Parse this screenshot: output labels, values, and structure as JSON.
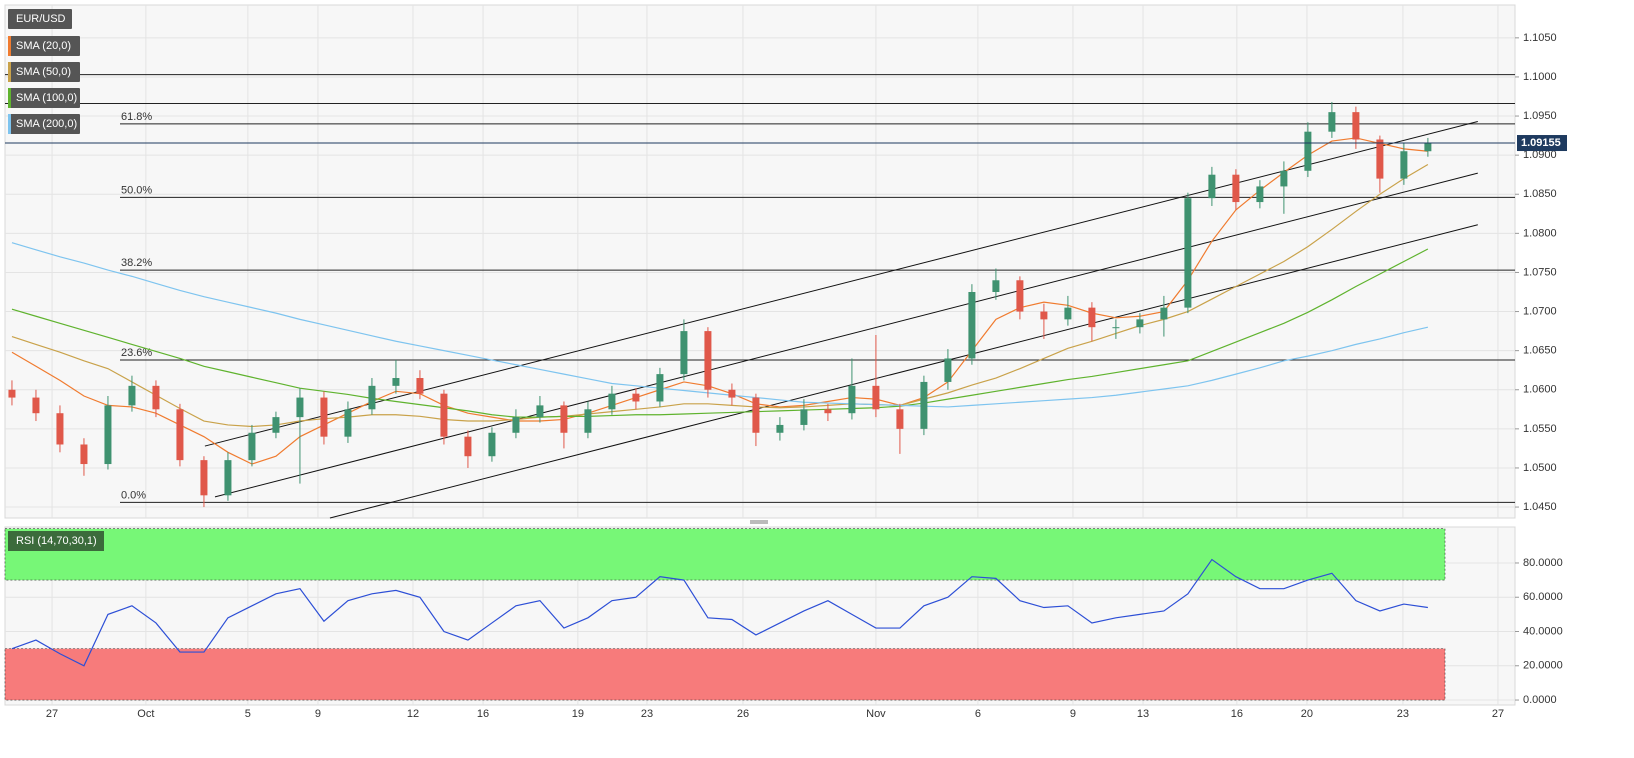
{
  "chart_data": [
    {
      "type": "candlestick",
      "name": "EUR/USD",
      "up_color": "#3f9270",
      "down_color": "#e0584a",
      "x": [
        0,
        1,
        2,
        3,
        4,
        5,
        6,
        7,
        8,
        9,
        10,
        11,
        12,
        13,
        14,
        15,
        16,
        17,
        18,
        19,
        20,
        21,
        22,
        23,
        24,
        25,
        26,
        27,
        28,
        29,
        30,
        31,
        32,
        33,
        34,
        35,
        36,
        37,
        38,
        39,
        40,
        41,
        42,
        43,
        44,
        45,
        46,
        47,
        48,
        49,
        50,
        51,
        52,
        53,
        54,
        55,
        56,
        57,
        58,
        59
      ],
      "open": [
        1.06,
        1.059,
        1.057,
        1.053,
        1.0505,
        1.058,
        1.0605,
        1.0575,
        1.051,
        1.0465,
        1.051,
        1.0545,
        1.0565,
        1.059,
        1.054,
        1.0575,
        1.0605,
        1.0615,
        1.0595,
        1.054,
        1.0515,
        1.0545,
        1.0565,
        1.058,
        1.0545,
        1.0575,
        1.0595,
        1.0585,
        1.062,
        1.0675,
        1.06,
        1.059,
        1.0545,
        1.0555,
        1.0575,
        1.057,
        1.0605,
        1.0575,
        1.055,
        1.061,
        1.064,
        1.0725,
        1.074,
        1.07,
        1.069,
        1.0705,
        1.068,
        1.068,
        1.069,
        1.0705,
        1.0845,
        1.0875,
        1.084,
        1.086,
        1.088,
        1.093,
        1.0955,
        1.092,
        1.087,
        1.0905
      ],
      "high": [
        1.0612,
        1.06,
        1.058,
        1.0538,
        1.0592,
        1.0618,
        1.0612,
        1.0582,
        1.0515,
        1.052,
        1.0555,
        1.0572,
        1.0602,
        1.0598,
        1.0585,
        1.0615,
        1.0638,
        1.0625,
        1.06,
        1.0548,
        1.0552,
        1.0575,
        1.0592,
        1.0585,
        1.0585,
        1.0605,
        1.0602,
        1.0628,
        1.069,
        1.068,
        1.0608,
        1.0595,
        1.0565,
        1.0588,
        1.0582,
        1.064,
        1.067,
        1.0582,
        1.0618,
        1.0652,
        1.0735,
        1.0755,
        1.0745,
        1.071,
        1.072,
        1.0712,
        1.069,
        1.0698,
        1.072,
        1.0852,
        1.0885,
        1.0882,
        1.0868,
        1.0892,
        1.0942,
        1.0968,
        1.0962,
        1.0925,
        1.0915,
        1.0922
      ],
      "low": [
        1.058,
        1.056,
        1.052,
        1.049,
        1.0498,
        1.0572,
        1.0565,
        1.0502,
        1.045,
        1.0458,
        1.0502,
        1.0538,
        1.048,
        1.053,
        1.0532,
        1.0568,
        1.0595,
        1.0588,
        1.053,
        1.05,
        1.0508,
        1.0538,
        1.0558,
        1.0525,
        1.0538,
        1.0568,
        1.0575,
        1.0578,
        1.0612,
        1.059,
        1.058,
        1.0528,
        1.0535,
        1.0548,
        1.056,
        1.0562,
        1.0565,
        1.0518,
        1.0542,
        1.06,
        1.0632,
        1.0715,
        1.069,
        1.0665,
        1.0682,
        1.0662,
        1.0665,
        1.0672,
        1.0668,
        1.0698,
        1.0835,
        1.083,
        1.0832,
        1.0825,
        1.0872,
        1.0922,
        1.0908,
        1.0852,
        1.0862,
        1.0898
      ],
      "close": [
        1.059,
        1.057,
        1.053,
        1.0505,
        1.058,
        1.0605,
        1.0575,
        1.051,
        1.0465,
        1.051,
        1.0545,
        1.0565,
        1.059,
        1.054,
        1.0575,
        1.0605,
        1.0615,
        1.0595,
        1.054,
        1.0515,
        1.0545,
        1.0565,
        1.058,
        1.0545,
        1.0575,
        1.0595,
        1.0585,
        1.062,
        1.0675,
        1.06,
        1.059,
        1.0545,
        1.0555,
        1.0575,
        1.057,
        1.0605,
        1.0575,
        1.055,
        1.061,
        1.064,
        1.0725,
        1.074,
        1.07,
        1.069,
        1.0705,
        1.068,
        1.068,
        1.069,
        1.0705,
        1.0845,
        1.0875,
        1.084,
        1.086,
        1.088,
        1.093,
        1.0955,
        1.092,
        1.087,
        1.0905,
        1.09155
      ],
      "series": [
        {
          "name": "SMA (20,0)",
          "color": "#f07b2f",
          "values": [
            1.0648,
            1.063,
            1.0612,
            1.0592,
            1.058,
            1.0578,
            1.057,
            1.0555,
            1.054,
            1.052,
            1.0505,
            1.0515,
            1.054,
            1.0555,
            1.057,
            1.0585,
            1.0598,
            1.0595,
            1.058,
            1.057,
            1.0565,
            1.056,
            1.056,
            1.0562,
            1.057,
            1.058,
            1.059,
            1.06,
            1.061,
            1.0605,
            1.0595,
            1.0582,
            1.0578,
            1.058,
            1.0585,
            1.059,
            1.0588,
            1.058,
            1.059,
            1.061,
            1.065,
            1.069,
            1.0705,
            1.0712,
            1.0708,
            1.0698,
            1.0692,
            1.0694,
            1.07,
            1.074,
            1.079,
            1.083,
            1.0855,
            1.0878,
            1.09,
            1.0918,
            1.0922,
            1.0915,
            1.0908,
            1.0905
          ]
        },
        {
          "name": "SMA (50,0)",
          "color": "#c9a24a",
          "values": [
            1.0668,
            1.0658,
            1.0648,
            1.0637,
            1.0627,
            1.061,
            1.0593,
            1.0576,
            1.056,
            1.0555,
            1.0553,
            1.0555,
            1.056,
            1.0563,
            1.0565,
            1.0568,
            1.0568,
            1.0566,
            1.0562,
            1.056,
            1.056,
            1.0562,
            1.0565,
            1.0566,
            1.0569,
            1.0572,
            1.0575,
            1.0578,
            1.0582,
            1.0582,
            1.058,
            1.0578,
            1.0577,
            1.0578,
            1.058,
            1.0582,
            1.0581,
            1.058,
            1.0588,
            1.0596,
            1.0606,
            1.0615,
            1.0627,
            1.064,
            1.0653,
            1.0662,
            1.0672,
            1.0682,
            1.069,
            1.07,
            1.0716,
            1.0732,
            1.0748,
            1.0764,
            1.0783,
            1.0805,
            1.0828,
            1.085,
            1.087,
            1.0888
          ]
        },
        {
          "name": "SMA (100,0)",
          "color": "#5fb32e",
          "values": [
            1.0703,
            1.0694,
            1.0685,
            1.0676,
            1.0667,
            1.0658,
            1.0649,
            1.064,
            1.063,
            1.0623,
            1.0616,
            1.0609,
            1.0602,
            1.0598,
            1.0594,
            1.0589,
            1.0585,
            1.0581,
            1.0577,
            1.0573,
            1.0568,
            1.0565,
            1.0565,
            1.0566,
            1.0566,
            1.0567,
            1.0568,
            1.0568,
            1.0569,
            1.057,
            1.0571,
            1.0572,
            1.0573,
            1.0574,
            1.0575,
            1.0576,
            1.0577,
            1.0579,
            1.0583,
            1.0588,
            1.0593,
            1.0598,
            1.0603,
            1.0608,
            1.0613,
            1.0617,
            1.0622,
            1.0627,
            1.0632,
            1.0637,
            1.0649,
            1.0661,
            1.0673,
            1.0685,
            1.0699,
            1.0715,
            1.0732,
            1.0748,
            1.0764,
            1.078
          ]
        },
        {
          "name": "SMA (200,0)",
          "color": "#7ec4ef",
          "values": [
            1.0788,
            1.0779,
            1.077,
            1.0762,
            1.0753,
            1.0745,
            1.0736,
            1.0727,
            1.0719,
            1.0712,
            1.0705,
            1.0698,
            1.069,
            1.0683,
            1.0676,
            1.0669,
            1.0662,
            1.0656,
            1.065,
            1.0644,
            1.0638,
            1.0632,
            1.0626,
            1.062,
            1.0614,
            1.0608,
            1.0605,
            1.0602,
            1.0599,
            1.0596,
            1.0593,
            1.059,
            1.0587,
            1.0584,
            1.0583,
            1.0582,
            1.0581,
            1.058,
            1.0579,
            1.0578,
            1.058,
            1.0582,
            1.0584,
            1.0586,
            1.0588,
            1.059,
            1.0593,
            1.0597,
            1.0601,
            1.0605,
            1.0612,
            1.062,
            1.0628,
            1.0637,
            1.0643,
            1.065,
            1.0658,
            1.0665,
            1.0673,
            1.068
          ]
        }
      ],
      "levels": [
        {
          "label": "61.8%",
          "value": 1.094
        },
        {
          "label": "50.0%",
          "value": 1.0846
        },
        {
          "label": "38.2%",
          "value": 1.0753
        },
        {
          "label": "23.6%",
          "value": 1.0638
        },
        {
          "label": "0.0%",
          "value": 1.0456
        }
      ],
      "lines": [
        1.1003,
        1.0966
      ],
      "last_price": 1.09155,
      "trendlines": [
        {
          "x": [
            8.04,
            61.08
          ],
          "y": [
            1.0528,
            1.0943
          ]
        },
        {
          "x": [
            8.46,
            61.08
          ],
          "y": [
            1.0463,
            1.0877
          ]
        },
        {
          "x": [
            13.25,
            61.08
          ],
          "y": [
            1.0436,
            1.0811
          ]
        }
      ],
      "xlim": [
        -0.29,
        62.63
      ],
      "xticks": [
        {
          "value": 1.67,
          "label": "27"
        },
        {
          "value": 5.58,
          "label": "Oct"
        },
        {
          "value": 9.83,
          "label": "5"
        },
        {
          "value": 12.75,
          "label": "9"
        },
        {
          "value": 16.71,
          "label": "12"
        },
        {
          "value": 19.63,
          "label": "16"
        },
        {
          "value": 23.58,
          "label": "19"
        },
        {
          "value": 26.46,
          "label": "23"
        },
        {
          "value": 30.46,
          "label": "26"
        },
        {
          "value": 36.0,
          "label": "Nov"
        },
        {
          "value": 40.25,
          "label": "6"
        },
        {
          "value": 44.21,
          "label": "9"
        },
        {
          "value": 47.13,
          "label": "13"
        },
        {
          "value": 51.04,
          "label": "16"
        },
        {
          "value": 53.96,
          "label": "20"
        },
        {
          "value": 57.96,
          "label": "23"
        },
        {
          "value": 61.92,
          "label": "27"
        }
      ],
      "ylim": [
        1.0436,
        1.1092
      ],
      "yticks": [
        {
          "value": 1.045,
          "label": "1.0450"
        },
        {
          "value": 1.05,
          "label": "1.0500"
        },
        {
          "value": 1.055,
          "label": "1.0550"
        },
        {
          "value": 1.06,
          "label": "1.0600"
        },
        {
          "value": 1.065,
          "label": "1.0650"
        },
        {
          "value": 1.07,
          "label": "1.0700"
        },
        {
          "value": 1.075,
          "label": "1.0750"
        },
        {
          "value": 1.08,
          "label": "1.0800"
        },
        {
          "value": 1.085,
          "label": "1.0850"
        },
        {
          "value": 1.09,
          "label": "1.0900"
        },
        {
          "value": 1.095,
          "label": "1.0950"
        },
        {
          "value": 1.1,
          "label": "1.1000"
        },
        {
          "value": 1.105,
          "label": "1.1050"
        }
      ],
      "grid": true
    },
    {
      "type": "line",
      "series": [
        {
          "name": "RSI (14,70,30,1)",
          "color": "#2d4fd6",
          "values": [
            30,
            35,
            27,
            20,
            50,
            55,
            45,
            28,
            28,
            48,
            55,
            62,
            65,
            46,
            58,
            62,
            64,
            60,
            40,
            35,
            45,
            55,
            58,
            42,
            48,
            58,
            60,
            72,
            70,
            48,
            47,
            38,
            45,
            52,
            58,
            50,
            42,
            42,
            55,
            60,
            72,
            71,
            58,
            54,
            55,
            45,
            48,
            50,
            52,
            62,
            82,
            72,
            65,
            65,
            70,
            74,
            58,
            52,
            56,
            54
          ]
        }
      ],
      "zones": [
        {
          "from": 70,
          "to": 100,
          "color": "#77f777"
        },
        {
          "from": 0,
          "to": 30,
          "color": "#f77b7b"
        }
      ],
      "ylim": [
        -2.9,
        101
      ],
      "yticks": [
        {
          "value": 0,
          "label": "0.0000"
        },
        {
          "value": 20,
          "label": "20.0000"
        },
        {
          "value": 40,
          "label": "40.0000"
        },
        {
          "value": 60,
          "label": "60.0000"
        },
        {
          "value": 80,
          "label": "80.0000"
        }
      ],
      "grid": true
    }
  ]
}
